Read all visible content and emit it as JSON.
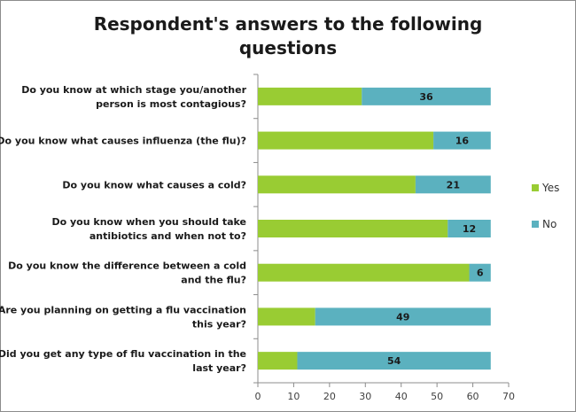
{
  "chart_data": {
    "type": "bar",
    "orientation": "horizontal",
    "stacked": true,
    "title_lines": [
      "Respondent's answers to the following",
      "questions"
    ],
    "categories": [
      [
        "Do you know at which stage you/another",
        "person is most contagious?"
      ],
      [
        "Do you know what causes influenza (the flu)?"
      ],
      [
        "Do you know what causes a cold?"
      ],
      [
        "Do you know when you should take",
        "antibiotics and when not to?"
      ],
      [
        "Do you know the difference between a cold",
        "and the flu?"
      ],
      [
        "Are you planning on getting a flu vaccination",
        "this year?"
      ],
      [
        "Did you get any type of flu vaccination in the",
        "last year?"
      ]
    ],
    "series": [
      {
        "name": "Yes",
        "color": "#99cc33",
        "values": [
          29,
          49,
          44,
          53,
          59,
          16,
          11
        ],
        "show_labels": false
      },
      {
        "name": "No",
        "color": "#5bb1bf",
        "values": [
          36,
          16,
          21,
          12,
          6,
          49,
          54
        ],
        "show_labels": true
      }
    ],
    "xlim": [
      0,
      70
    ],
    "xticks": [
      0,
      10,
      20,
      30,
      40,
      50,
      60,
      70
    ],
    "legend_position": "right",
    "grid": false
  }
}
